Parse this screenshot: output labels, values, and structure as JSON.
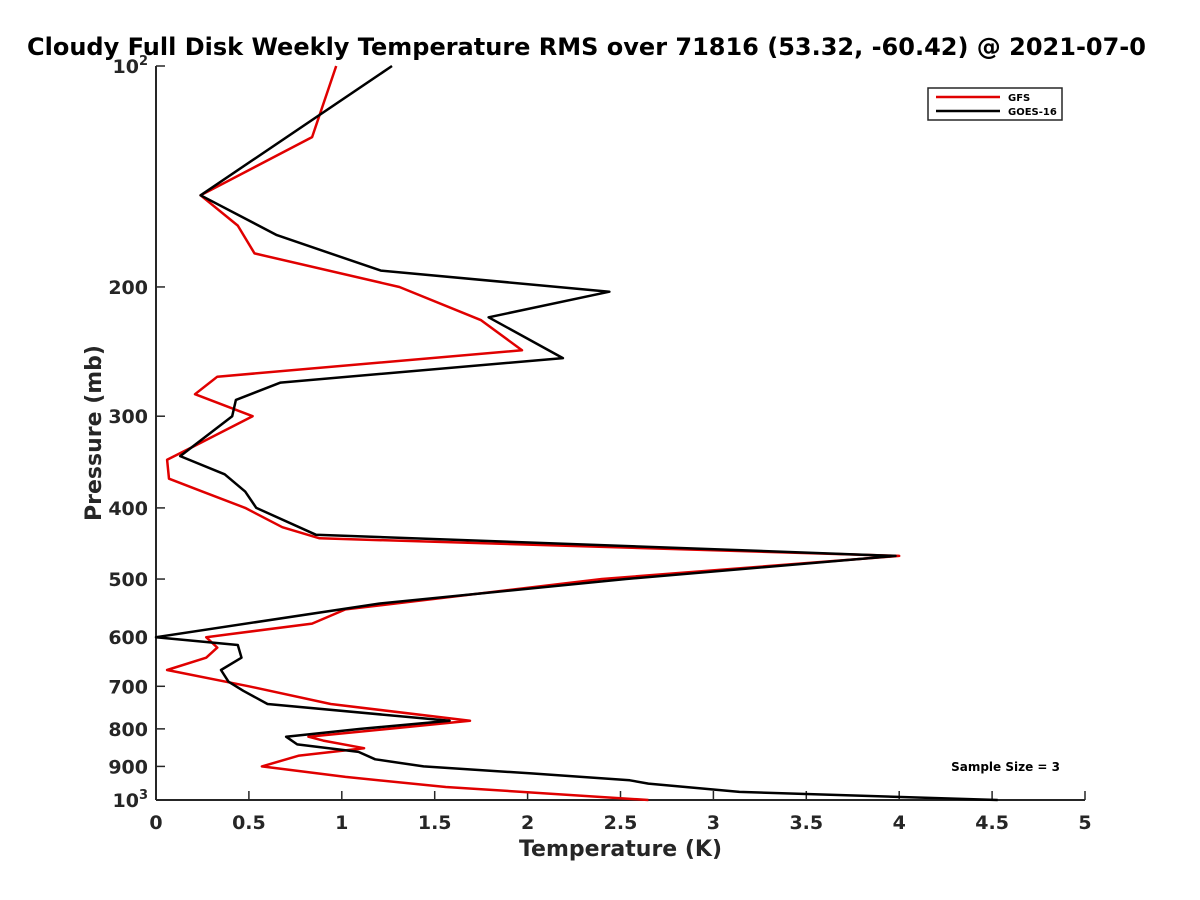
{
  "chart_data": {
    "type": "line",
    "title": "Cloudy Full Disk Weekly Temperature RMS over 71816 (53.32, -60.42) @ 2021-07-0",
    "xlabel": "Temperature (K)",
    "ylabel": "Pressure (mb)",
    "xlim": [
      0,
      5
    ],
    "ylim": [
      1000,
      100
    ],
    "y_scale": "log",
    "y_reversed": true,
    "x_ticks": [
      0,
      0.5,
      1,
      1.5,
      2,
      2.5,
      3,
      3.5,
      4,
      4.5,
      5
    ],
    "x_tick_labels": [
      "0",
      "0.5",
      "1",
      "1.5",
      "2",
      "2.5",
      "3",
      "3.5",
      "4",
      "4.5",
      "5"
    ],
    "y_ticks": [
      100,
      200,
      300,
      400,
      500,
      600,
      700,
      800,
      900,
      1000
    ],
    "y_tick_labels": [
      {
        "base": "10",
        "exp": "2"
      },
      {
        "base": "200",
        "exp": ""
      },
      {
        "base": "300",
        "exp": ""
      },
      {
        "base": "400",
        "exp": ""
      },
      {
        "base": "500",
        "exp": ""
      },
      {
        "base": "600",
        "exp": ""
      },
      {
        "base": "700",
        "exp": ""
      },
      {
        "base": "800",
        "exp": ""
      },
      {
        "base": "900",
        "exp": ""
      },
      {
        "base": "10",
        "exp": "3"
      }
    ],
    "grid": false,
    "legend_position": "top-right",
    "annotation": "Sample Size = 3",
    "series": [
      {
        "name": "GFS",
        "color": "#e00000",
        "points": [
          [
            0.97,
            100
          ],
          [
            0.84,
            125
          ],
          [
            0.24,
            150
          ],
          [
            0.44,
            165
          ],
          [
            0.53,
            180
          ],
          [
            1.31,
            200
          ],
          [
            1.75,
            222
          ],
          [
            1.97,
            244
          ],
          [
            0.33,
            265
          ],
          [
            0.21,
            280
          ],
          [
            0.52,
            300
          ],
          [
            0.2,
            330
          ],
          [
            0.06,
            344
          ],
          [
            0.07,
            365
          ],
          [
            0.25,
            380
          ],
          [
            0.48,
            400
          ],
          [
            0.68,
            425
          ],
          [
            0.88,
            440
          ],
          [
            4.0,
            465
          ],
          [
            2.4,
            500
          ],
          [
            1.02,
            550
          ],
          [
            0.84,
            575
          ],
          [
            0.27,
            600
          ],
          [
            0.33,
            620
          ],
          [
            0.27,
            640
          ],
          [
            0.06,
            665
          ],
          [
            0.5,
            700
          ],
          [
            0.94,
            740
          ],
          [
            1.69,
            780
          ],
          [
            0.82,
            820
          ],
          [
            0.9,
            830
          ],
          [
            1.12,
            850
          ],
          [
            0.77,
            870
          ],
          [
            0.57,
            900
          ],
          [
            1.02,
            930
          ],
          [
            1.56,
            960
          ],
          [
            2.65,
            1000
          ]
        ]
      },
      {
        "name": "GOES-16",
        "color": "#000000",
        "points": [
          [
            1.27,
            100
          ],
          [
            0.24,
            150
          ],
          [
            0.65,
            170
          ],
          [
            1.21,
            190
          ],
          [
            2.44,
            203
          ],
          [
            1.79,
            220
          ],
          [
            2.19,
            250
          ],
          [
            0.67,
            270
          ],
          [
            0.43,
            285
          ],
          [
            0.41,
            300
          ],
          [
            0.13,
            340
          ],
          [
            0.37,
            360
          ],
          [
            0.48,
            380
          ],
          [
            0.54,
            400
          ],
          [
            0.86,
            435
          ],
          [
            3.98,
            465
          ],
          [
            2.53,
            500
          ],
          [
            1.2,
            540
          ],
          [
            0.0,
            600
          ],
          [
            0.44,
            615
          ],
          [
            0.46,
            640
          ],
          [
            0.35,
            665
          ],
          [
            0.39,
            690
          ],
          [
            0.47,
            710
          ],
          [
            0.6,
            740
          ],
          [
            1.58,
            780
          ],
          [
            1.1,
            800
          ],
          [
            0.7,
            820
          ],
          [
            0.76,
            840
          ],
          [
            1.09,
            860
          ],
          [
            1.18,
            880
          ],
          [
            1.44,
            900
          ],
          [
            2.02,
            920
          ],
          [
            2.55,
            940
          ],
          [
            2.65,
            950
          ],
          [
            3.14,
            975
          ],
          [
            4.53,
            1000
          ]
        ]
      }
    ]
  }
}
